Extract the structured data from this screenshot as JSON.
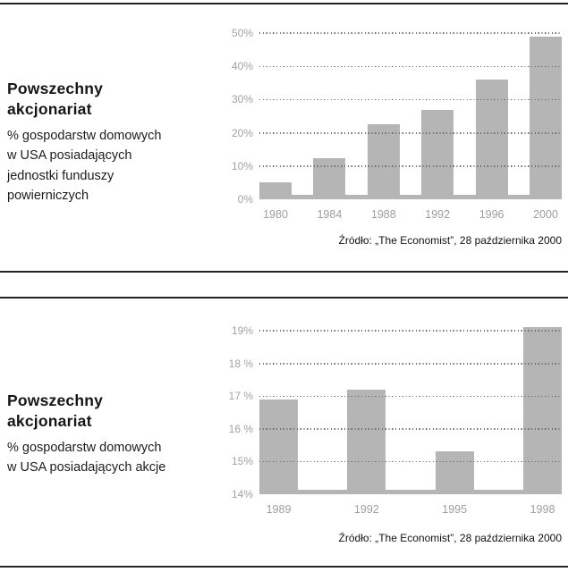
{
  "page": {
    "background": "#ffffff",
    "rule_color": "#242424",
    "bar_color": "#b5b5b5",
    "axis_label_color": "#a2a2a2"
  },
  "sections": [
    {
      "title": "Powszechny\nakcjonariat",
      "subtitle": "% gospodarstw domowych\nw USA posiadających\njednostki funduszy\npowierniczych",
      "source": "Źródło: „The Economist”, 28 października 2000"
    },
    {
      "title": "Powszechny\nakcjonariat",
      "subtitle": "% gospodarstw domowych\nw USA posiadających akcje",
      "source": "Źródło: „The Economist”, 28 października 2000"
    }
  ],
  "chart_data": [
    {
      "type": "bar",
      "title": "Powszechny akcjonariat",
      "subtitle": "% gospodarstw domowych w USA posiadających jednostki funduszy powierniczych",
      "categories": [
        "1980",
        "1984",
        "1988",
        "1992",
        "1996",
        "2000"
      ],
      "values": [
        5,
        12.5,
        22.5,
        27,
        36,
        49
      ],
      "ylim": [
        0,
        52
      ],
      "yticks": [
        0,
        10,
        20,
        30,
        40,
        50
      ],
      "ytick_labels": [
        "0%",
        "10%",
        "20%",
        "30%",
        "40%",
        "50%"
      ],
      "xlabel": "",
      "ylabel": "",
      "grid": "horizontal-dotted",
      "legend": "none",
      "bar_color": "#b5b5b5",
      "source": "Źródło: „The Economist”, 28 października 2000"
    },
    {
      "type": "bar",
      "title": "Powszechny akcjonariat",
      "subtitle": "% gospodarstw domowych w USA posiadających akcje",
      "categories": [
        "1989",
        "1992",
        "1995",
        "1998"
      ],
      "values": [
        16.9,
        17.2,
        15.3,
        19.1
      ],
      "ylim": [
        14,
        19.2
      ],
      "yticks": [
        14,
        15,
        16,
        17,
        18,
        19
      ],
      "ytick_labels": [
        "14%",
        "15%",
        "16 %",
        "17 %",
        "18 %",
        "19%"
      ],
      "xlabel": "",
      "ylabel": "",
      "grid": "horizontal-dotted",
      "legend": "none",
      "bar_color": "#b5b5b5",
      "source": "Źródło: „The Economist”, 28 października 2000"
    }
  ]
}
